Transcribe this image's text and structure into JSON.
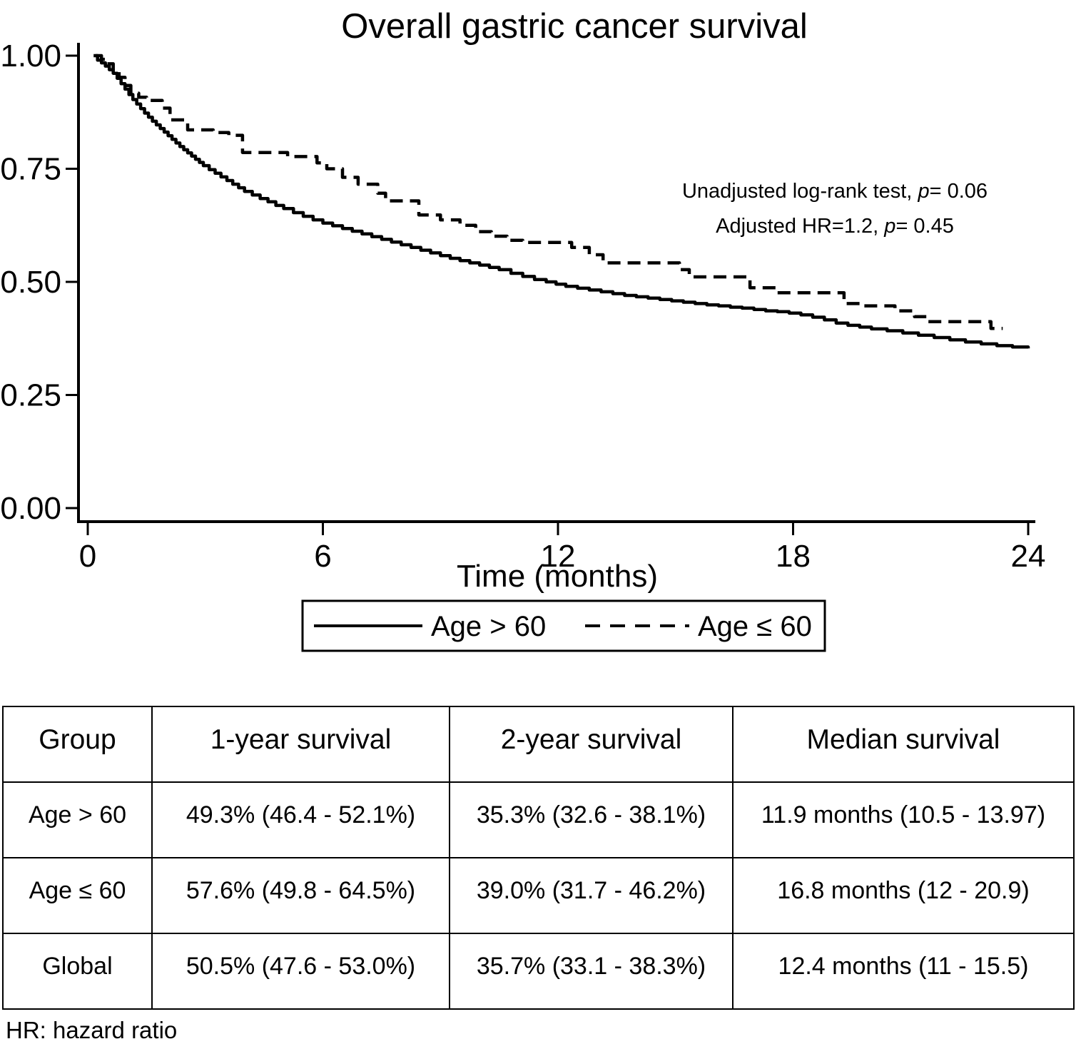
{
  "title": "Overall gastric cancer survival",
  "colors": {
    "foreground": "#000000",
    "background": "#ffffff"
  },
  "chart_data": {
    "type": "line",
    "subtype": "kaplan-meier-step",
    "title": "Overall gastric cancer survival",
    "xlabel": "Time (months)",
    "ylabel": "",
    "xlim": [
      0,
      24
    ],
    "ylim": [
      0.0,
      1.0
    ],
    "grid": false,
    "legend_position": "bottom",
    "x_ticks": [
      {
        "value": 0,
        "label": "0"
      },
      {
        "value": 6,
        "label": "6"
      },
      {
        "value": 12,
        "label": "12"
      },
      {
        "value": 18,
        "label": "18"
      },
      {
        "value": 24,
        "label": "24"
      }
    ],
    "y_ticks": [
      {
        "value": 0.0,
        "label": "0.00"
      },
      {
        "value": 0.25,
        "label": "0.25"
      },
      {
        "value": 0.5,
        "label": "0.50"
      },
      {
        "value": 0.75,
        "label": "0.75"
      },
      {
        "value": 1.0,
        "label": "1.00"
      }
    ],
    "annotations": [
      {
        "segments": [
          {
            "text": "Unadjusted log-rank test, ",
            "italic": false
          },
          {
            "text": "p",
            "italic": true
          },
          {
            "text": "= 0.06",
            "italic": false
          }
        ]
      },
      {
        "segments": [
          {
            "text": "Adjusted HR=1.2, ",
            "italic": false
          },
          {
            "text": "p",
            "italic": true
          },
          {
            "text": "= 0.45",
            "italic": false
          }
        ]
      }
    ],
    "series": [
      {
        "name": "Age > 60",
        "line_style": "solid",
        "color": "#000000",
        "steps": [
          [
            0.15,
            1.0
          ],
          [
            0.25,
            0.99
          ],
          [
            0.35,
            0.984
          ],
          [
            0.45,
            0.977
          ],
          [
            0.55,
            0.969
          ],
          [
            0.65,
            0.961
          ],
          [
            0.75,
            0.95
          ],
          [
            0.85,
            0.938
          ],
          [
            0.95,
            0.926
          ],
          [
            1.05,
            0.914
          ],
          [
            1.15,
            0.903
          ],
          [
            1.25,
            0.893
          ],
          [
            1.35,
            0.883
          ],
          [
            1.45,
            0.873
          ],
          [
            1.55,
            0.864
          ],
          [
            1.65,
            0.855
          ],
          [
            1.75,
            0.847
          ],
          [
            1.85,
            0.839
          ],
          [
            1.95,
            0.831
          ],
          [
            2.05,
            0.823
          ],
          [
            2.15,
            0.815
          ],
          [
            2.25,
            0.807
          ],
          [
            2.35,
            0.799
          ],
          [
            2.45,
            0.792
          ],
          [
            2.55,
            0.785
          ],
          [
            2.65,
            0.778
          ],
          [
            2.75,
            0.771
          ],
          [
            2.85,
            0.764
          ],
          [
            2.95,
            0.757
          ],
          [
            3.1,
            0.748
          ],
          [
            3.25,
            0.74
          ],
          [
            3.4,
            0.732
          ],
          [
            3.55,
            0.724
          ],
          [
            3.7,
            0.716
          ],
          [
            3.85,
            0.708
          ],
          [
            4.0,
            0.7
          ],
          [
            4.2,
            0.692
          ],
          [
            4.4,
            0.684
          ],
          [
            4.6,
            0.677
          ],
          [
            4.8,
            0.669
          ],
          [
            5.0,
            0.662
          ],
          [
            5.25,
            0.653
          ],
          [
            5.5,
            0.645
          ],
          [
            5.75,
            0.637
          ],
          [
            6.0,
            0.63
          ],
          [
            6.25,
            0.624
          ],
          [
            6.5,
            0.618
          ],
          [
            6.75,
            0.612
          ],
          [
            7.0,
            0.606
          ],
          [
            7.25,
            0.6
          ],
          [
            7.5,
            0.594
          ],
          [
            7.75,
            0.588
          ],
          [
            8.0,
            0.582
          ],
          [
            8.25,
            0.576
          ],
          [
            8.5,
            0.57
          ],
          [
            8.75,
            0.564
          ],
          [
            9.0,
            0.558
          ],
          [
            9.25,
            0.552
          ],
          [
            9.5,
            0.547
          ],
          [
            9.75,
            0.542
          ],
          [
            10.0,
            0.537
          ],
          [
            10.25,
            0.532
          ],
          [
            10.5,
            0.527
          ],
          [
            10.8,
            0.519
          ],
          [
            11.1,
            0.512
          ],
          [
            11.4,
            0.505
          ],
          [
            11.7,
            0.5
          ],
          [
            11.95,
            0.495
          ],
          [
            12.2,
            0.49
          ],
          [
            12.5,
            0.486
          ],
          [
            12.8,
            0.482
          ],
          [
            13.1,
            0.478
          ],
          [
            13.4,
            0.474
          ],
          [
            13.7,
            0.47
          ],
          [
            14.0,
            0.467
          ],
          [
            14.3,
            0.464
          ],
          [
            14.6,
            0.461
          ],
          [
            14.9,
            0.458
          ],
          [
            15.2,
            0.455
          ],
          [
            15.5,
            0.452
          ],
          [
            15.8,
            0.449
          ],
          [
            16.1,
            0.447
          ],
          [
            16.4,
            0.444
          ],
          [
            16.7,
            0.442
          ],
          [
            17.0,
            0.439
          ],
          [
            17.3,
            0.436
          ],
          [
            17.6,
            0.434
          ],
          [
            17.9,
            0.431
          ],
          [
            18.2,
            0.427
          ],
          [
            18.5,
            0.422
          ],
          [
            18.8,
            0.416
          ],
          [
            19.1,
            0.409
          ],
          [
            19.4,
            0.404
          ],
          [
            19.7,
            0.4
          ],
          [
            20.0,
            0.396
          ],
          [
            20.4,
            0.392
          ],
          [
            20.8,
            0.387
          ],
          [
            21.2,
            0.382
          ],
          [
            21.6,
            0.377
          ],
          [
            22.0,
            0.372
          ],
          [
            22.4,
            0.367
          ],
          [
            22.8,
            0.363
          ],
          [
            23.2,
            0.359
          ],
          [
            23.6,
            0.356
          ],
          [
            24.0,
            0.353
          ]
        ]
      },
      {
        "name": "Age ≤ 60",
        "line_style": "dashed",
        "color": "#000000",
        "steps": [
          [
            0.2,
            1.0
          ],
          [
            0.35,
            0.992
          ],
          [
            0.5,
            0.982
          ],
          [
            0.65,
            0.968
          ],
          [
            0.8,
            0.952
          ],
          [
            0.95,
            0.934
          ],
          [
            1.1,
            0.917
          ],
          [
            1.3,
            0.908
          ],
          [
            1.5,
            0.901
          ],
          [
            1.9,
            0.884
          ],
          [
            2.1,
            0.858
          ],
          [
            2.55,
            0.836
          ],
          [
            3.2,
            0.83
          ],
          [
            3.6,
            0.824
          ],
          [
            3.95,
            0.786
          ],
          [
            5.1,
            0.777
          ],
          [
            5.85,
            0.763
          ],
          [
            6.1,
            0.75
          ],
          [
            6.5,
            0.731
          ],
          [
            6.9,
            0.716
          ],
          [
            7.4,
            0.696
          ],
          [
            7.6,
            0.679
          ],
          [
            8.45,
            0.648
          ],
          [
            9.0,
            0.637
          ],
          [
            9.5,
            0.625
          ],
          [
            9.9,
            0.611
          ],
          [
            10.3,
            0.601
          ],
          [
            10.7,
            0.592
          ],
          [
            11.1,
            0.587
          ],
          [
            12.35,
            0.576
          ],
          [
            12.8,
            0.56
          ],
          [
            13.15,
            0.542
          ],
          [
            15.1,
            0.527
          ],
          [
            15.35,
            0.511
          ],
          [
            16.9,
            0.487
          ],
          [
            17.6,
            0.476
          ],
          [
            19.3,
            0.452
          ],
          [
            19.75,
            0.447
          ],
          [
            20.6,
            0.436
          ],
          [
            21.1,
            0.423
          ],
          [
            21.45,
            0.412
          ],
          [
            23.05,
            0.397
          ],
          [
            23.35,
            0.397
          ]
        ]
      }
    ]
  },
  "legend": {
    "items": [
      {
        "label": "Age > 60",
        "style": "solid"
      },
      {
        "label": "Age ≤ 60",
        "style": "dashed"
      }
    ]
  },
  "table": {
    "headers": [
      "Group",
      "1-year survival",
      "2-year survival",
      "Median survival"
    ],
    "rows": [
      [
        "Age > 60",
        "49.3% (46.4 - 52.1%)",
        "35.3% (32.6 - 38.1%)",
        "11.9 months (10.5 - 13.97)"
      ],
      [
        "Age ≤ 60",
        "57.6% (49.8 - 64.5%)",
        "39.0% (31.7 - 46.2%)",
        "16.8 months (12 - 20.9)"
      ],
      [
        "Global",
        "50.5% (47.6 - 53.0%)",
        "35.7% (33.1 - 38.3%)",
        "12.4 months (11 - 15.5)"
      ]
    ]
  },
  "footnote": "HR: hazard ratio"
}
